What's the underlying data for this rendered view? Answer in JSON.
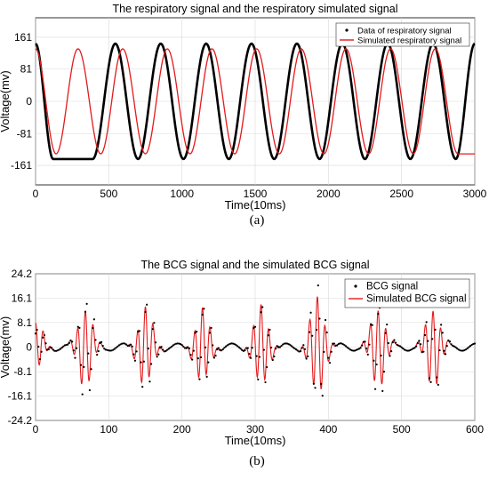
{
  "chart_data": [
    {
      "type": "line",
      "title": "The respiratory signal and the respiratory simulated signal",
      "xlabel": "Time(10ms)",
      "ylabel": "Voltage(mv)",
      "xlim": [
        0,
        3000
      ],
      "ylim": [
        -210,
        210
      ],
      "xticks": [
        "0",
        "500",
        "1000",
        "1500",
        "2000",
        "2500",
        "3000"
      ],
      "yticks": [
        "161",
        "81",
        "0",
        "-81",
        "-161"
      ],
      "grid": true,
      "legend": "top-right",
      "sublabel": "(a)",
      "series": [
        {
          "name": "Data of respiratory signal",
          "style": "dots",
          "color": "#000000",
          "amplitude": 145,
          "period": 310,
          "phase_x": 0,
          "peaks_x": [
            0,
            545,
            855,
            1165,
            1475,
            1785,
            2095,
            2405,
            2715,
            3000
          ],
          "troughs_x": [
            120,
            390,
            700,
            1010,
            1320,
            1630,
            1940,
            2250,
            2560,
            2870
          ]
        },
        {
          "name": "Simulated respiratory signal",
          "style": "line",
          "color": "#e41a1c",
          "amplitude": 132,
          "period": 305,
          "phase_x": 0,
          "peaks_x": [
            0,
            290,
            595,
            900,
            1205,
            1510,
            1815,
            2120,
            2425,
            2730
          ],
          "troughs_x": [
            140,
            445,
            750,
            1055,
            1360,
            1665,
            1970,
            2275,
            2580,
            2885
          ]
        }
      ]
    },
    {
      "type": "line",
      "title": "The BCG signal and the simulated BCG  signal",
      "xlabel": "Time(10ms)",
      "ylabel": "Voltage(mv)",
      "xlim": [
        0,
        600
      ],
      "ylim": [
        -24.2,
        24.2
      ],
      "xticks": [
        "0",
        "100",
        "200",
        "300",
        "400",
        "500",
        "600"
      ],
      "yticks": [
        "24.2",
        "16.1",
        "8.1",
        "0",
        "-8.1",
        "-16.1",
        "-24.2"
      ],
      "grid": true,
      "legend": "top-right",
      "sublabel": "(b)",
      "beat_centers": [
        0,
        68,
        150,
        228,
        308,
        385,
        468,
        543
      ],
      "series": [
        {
          "name": "BCG signal",
          "style": "dots",
          "color": "#000000",
          "beat_amplitudes": [
            6,
            17,
            15,
            13,
            14,
            20,
            16,
            15
          ]
        },
        {
          "name": "Simulated BCG signal",
          "style": "line",
          "color": "#e41a1c",
          "beat_amplitudes": [
            8,
            13,
            13,
            12,
            13,
            16,
            13,
            13
          ]
        }
      ]
    }
  ]
}
